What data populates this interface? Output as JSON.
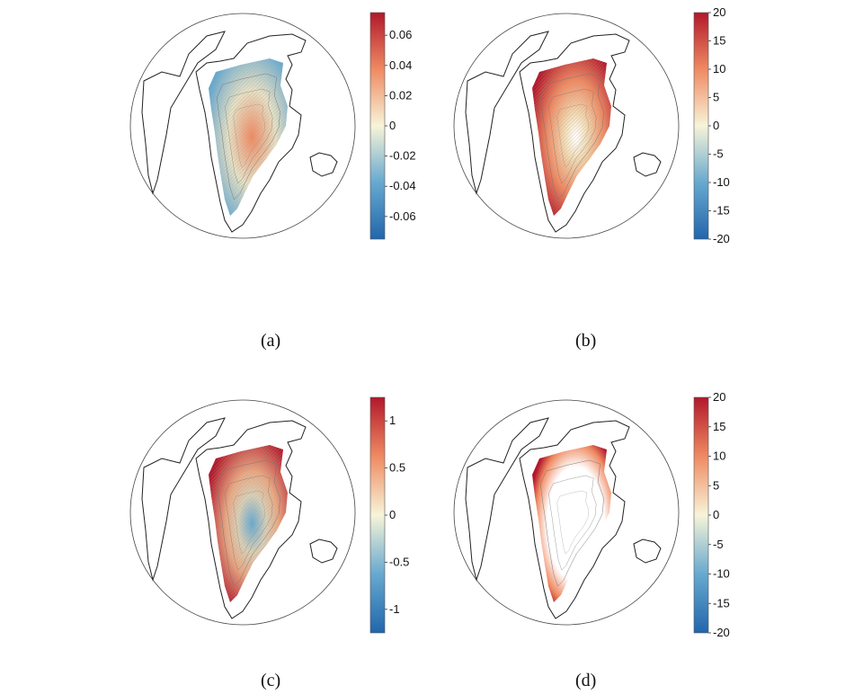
{
  "panels": [
    {
      "id": "a",
      "caption": "(a)",
      "colorbar": {
        "ticks": [
          "0.06",
          "0.04",
          "0.02",
          "0",
          "-0.02",
          "-0.04",
          "-0.06"
        ],
        "range": [
          -0.075,
          0.075
        ]
      },
      "fill": "diverging-light"
    },
    {
      "id": "b",
      "caption": "(b)",
      "colorbar": {
        "ticks": [
          "20",
          "15",
          "10",
          "5",
          "0",
          "-5",
          "-10",
          "-15",
          "-20"
        ],
        "range": [
          -20,
          20
        ]
      },
      "fill": "warm-edges"
    },
    {
      "id": "c",
      "caption": "(c)",
      "colorbar": {
        "ticks": [
          "1",
          "0.5",
          "0",
          "-0.5",
          "-1"
        ],
        "range": [
          -1.25,
          1.25
        ]
      },
      "fill": "mixed"
    },
    {
      "id": "d",
      "caption": "(d)",
      "colorbar": {
        "ticks": [
          "20",
          "15",
          "10",
          "5",
          "0",
          "-5",
          "-10",
          "-15",
          "-20"
        ],
        "range": [
          -20,
          20
        ]
      },
      "fill": "warm-coast"
    }
  ],
  "colors": {
    "high": "#b2182b",
    "midHigh": "#ef8a62",
    "mid": "#f7f4d8",
    "midLow": "#67a9cf",
    "low": "#2166ac"
  }
}
